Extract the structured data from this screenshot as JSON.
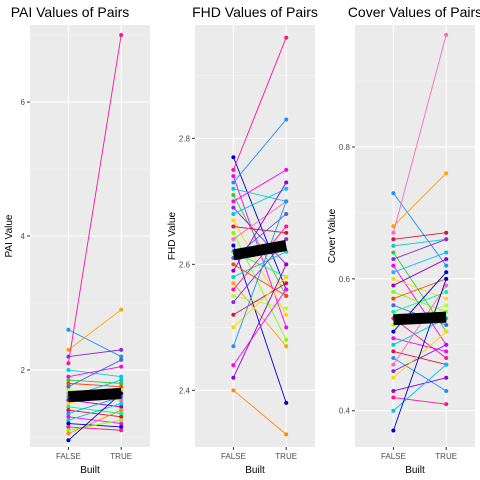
{
  "chart_data": [
    {
      "type": "line",
      "title": "PAI Values of Pairs",
      "xlabel": "Built",
      "ylabel": "PAI Value",
      "categories": [
        "FALSE",
        "TRUE"
      ],
      "ylim": [
        0.85,
        7.15
      ],
      "yticks": [
        2,
        4,
        6
      ],
      "grid": true,
      "mean": [
        1.6,
        1.65
      ],
      "pairs": [
        [
          2.6,
          2.2,
          "#1e90ff"
        ],
        [
          2.3,
          2.9,
          "#ffa500"
        ],
        [
          2.2,
          2.3,
          "#8a2be2"
        ],
        [
          2.1,
          7.0,
          "#ff1493"
        ],
        [
          2.0,
          1.9,
          "#00ced1"
        ],
        [
          1.9,
          2.05,
          "#ff00ff"
        ],
        [
          1.85,
          1.8,
          "#32cd32"
        ],
        [
          1.8,
          1.75,
          "#ff4500"
        ],
        [
          1.75,
          2.15,
          "#4169e1"
        ],
        [
          1.7,
          1.6,
          "#adff2f"
        ],
        [
          1.65,
          1.55,
          "#ff69b4"
        ],
        [
          1.6,
          1.85,
          "#00bfff"
        ],
        [
          1.55,
          1.45,
          "#9400d3"
        ],
        [
          1.5,
          1.7,
          "#ffd700"
        ],
        [
          1.45,
          1.35,
          "#00fa9a"
        ],
        [
          1.4,
          1.3,
          "#dc143c"
        ],
        [
          1.35,
          1.6,
          "#1e90ff"
        ],
        [
          1.3,
          1.2,
          "#ff00ff"
        ],
        [
          1.25,
          1.5,
          "#00ced1"
        ],
        [
          1.2,
          1.15,
          "#0000cd"
        ],
        [
          1.15,
          1.1,
          "#ff1493"
        ],
        [
          1.1,
          1.25,
          "#7fff00"
        ],
        [
          1.05,
          1.4,
          "#ff8c00"
        ],
        [
          0.95,
          1.65,
          "#0000cd"
        ]
      ]
    },
    {
      "type": "line",
      "title": "FHD Values of Pairs",
      "xlabel": "Built",
      "ylabel": "FHD Value",
      "categories": [
        "FALSE",
        "TRUE"
      ],
      "ylim": [
        2.31,
        2.98
      ],
      "yticks": [
        2.4,
        2.6,
        2.8
      ],
      "grid": true,
      "mean": [
        2.615,
        2.63
      ],
      "pairs": [
        [
          2.77,
          2.56,
          "#0000cd"
        ],
        [
          2.75,
          2.96,
          "#ff1493"
        ],
        [
          2.74,
          2.5,
          "#ff00ff"
        ],
        [
          2.73,
          2.83,
          "#1e90ff"
        ],
        [
          2.72,
          2.7,
          "#00ced1"
        ],
        [
          2.71,
          2.55,
          "#32cd32"
        ],
        [
          2.7,
          2.75,
          "#ff00ff"
        ],
        [
          2.69,
          2.6,
          "#8a2be2"
        ],
        [
          2.68,
          2.72,
          "#00bfff"
        ],
        [
          2.67,
          2.52,
          "#ffd700"
        ],
        [
          2.66,
          2.65,
          "#dc143c"
        ],
        [
          2.65,
          2.48,
          "#7fff00"
        ],
        [
          2.64,
          2.7,
          "#ff69b4"
        ],
        [
          2.63,
          2.38,
          "#0000cd"
        ],
        [
          2.62,
          2.58,
          "#00fa9a"
        ],
        [
          2.61,
          2.68,
          "#4169e1"
        ],
        [
          2.6,
          2.55,
          "#ff4500"
        ],
        [
          2.59,
          2.73,
          "#9400d3"
        ],
        [
          2.58,
          2.62,
          "#00ced1"
        ],
        [
          2.57,
          2.47,
          "#ffa500"
        ],
        [
          2.56,
          2.66,
          "#ff1493"
        ],
        [
          2.55,
          2.53,
          "#adff2f"
        ],
        [
          2.54,
          2.64,
          "#8a2be2"
        ],
        [
          2.52,
          2.57,
          "#dc143c"
        ],
        [
          2.5,
          2.58,
          "#ffd700"
        ],
        [
          2.47,
          2.7,
          "#1e90ff"
        ],
        [
          2.44,
          2.56,
          "#ff00ff"
        ],
        [
          2.42,
          2.6,
          "#9400d3"
        ],
        [
          2.4,
          2.33,
          "#ff8c00"
        ]
      ]
    },
    {
      "type": "line",
      "title": "Cover Values of Pairs",
      "xlabel": "Built",
      "ylabel": "Cover Value",
      "categories": [
        "FALSE",
        "TRUE"
      ],
      "ylim": [
        0.345,
        0.985
      ],
      "yticks": [
        0.4,
        0.6,
        0.8
      ],
      "grid": true,
      "mean": [
        0.538,
        0.542
      ],
      "pairs": [
        [
          0.73,
          0.62,
          "#1e90ff"
        ],
        [
          0.68,
          0.76,
          "#ffa500"
        ],
        [
          0.67,
          0.97,
          "#ff69b4"
        ],
        [
          0.66,
          0.67,
          "#dc143c"
        ],
        [
          0.65,
          0.66,
          "#00ced1"
        ],
        [
          0.64,
          0.52,
          "#32cd32"
        ],
        [
          0.63,
          0.66,
          "#8a2be2"
        ],
        [
          0.62,
          0.5,
          "#ff00ff"
        ],
        [
          0.61,
          0.64,
          "#00bfff"
        ],
        [
          0.6,
          0.57,
          "#ffd700"
        ],
        [
          0.59,
          0.63,
          "#9400d3"
        ],
        [
          0.58,
          0.55,
          "#7fff00"
        ],
        [
          0.57,
          0.6,
          "#ff4500"
        ],
        [
          0.56,
          0.53,
          "#4169e1"
        ],
        [
          0.55,
          0.58,
          "#00fa9a"
        ],
        [
          0.54,
          0.48,
          "#ff1493"
        ],
        [
          0.53,
          0.56,
          "#adff2f"
        ],
        [
          0.52,
          0.61,
          "#0000cd"
        ],
        [
          0.51,
          0.49,
          "#ff00ff"
        ],
        [
          0.5,
          0.54,
          "#00ced1"
        ],
        [
          0.49,
          0.47,
          "#dc143c"
        ],
        [
          0.48,
          0.43,
          "#1e90ff"
        ],
        [
          0.47,
          0.59,
          "#ff69b4"
        ],
        [
          0.46,
          0.5,
          "#8a2be2"
        ],
        [
          0.45,
          0.52,
          "#ffd700"
        ],
        [
          0.43,
          0.45,
          "#9400d3"
        ],
        [
          0.42,
          0.41,
          "#ff1493"
        ],
        [
          0.4,
          0.47,
          "#00bfff"
        ],
        [
          0.37,
          0.6,
          "#0000cd"
        ]
      ]
    }
  ]
}
